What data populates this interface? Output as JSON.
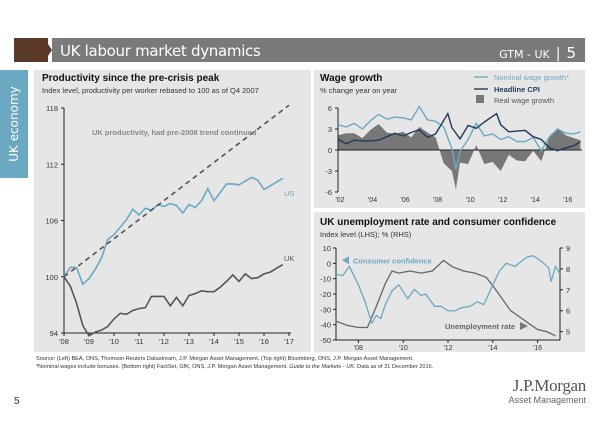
{
  "header": {
    "title": "UK labour market dynamics",
    "section": "GTM - UK",
    "separator": "|",
    "page": "5",
    "brand_color": "#5b3a2a",
    "bar_color": "#7a7a7a"
  },
  "side_tab": {
    "label": "UK economy",
    "color": "#6ba9c3"
  },
  "footer": {
    "source_line1": "Source: (Left) BEA, ONS, Thomson Reuters Datastream, J.P. Morgan Asset Management. (Top right) Bloomberg, ONS, J.P. Morgan Asset Management.",
    "source_line2a": "*Nominal wages include bonuses. (Bottom right) FactSet, GfK, ONS, J.P. Morgan Asset Management. ",
    "source_line2b": "Guide to the Markets - UK.",
    "source_line2c": " Data as of 31 December 2016.",
    "page_number": "5",
    "logo_line1": "J.P.Morgan",
    "logo_line2": "Asset Management"
  },
  "chart_data": [
    {
      "type": "line",
      "title": "Productivity since the pre-crisis peak",
      "subtitle": "Index level, productivity per worker rebased to 100 as of Q4 2007",
      "ylim": [
        94,
        118
      ],
      "yticks": [
        94,
        100,
        106,
        112,
        118
      ],
      "xlim": [
        2008,
        2017
      ],
      "xticks": [
        "'08",
        "'09",
        "'10",
        "'11",
        "'12",
        "'13",
        "'14",
        "'15",
        "'16",
        "'17"
      ],
      "annotations": [
        "UK productivity, had pre-2008 trend continued",
        "US",
        "UK"
      ],
      "series": [
        {
          "name": "US",
          "color": "#6ba9c3",
          "x": [
            2008,
            2008.25,
            2008.5,
            2008.75,
            2009,
            2009.25,
            2009.5,
            2009.75,
            2010,
            2010.25,
            2010.5,
            2010.75,
            2011,
            2011.25,
            2011.5,
            2011.75,
            2012,
            2012.25,
            2012.5,
            2012.75,
            2013,
            2013.25,
            2013.5,
            2013.75,
            2014,
            2014.25,
            2014.5,
            2014.75,
            2015,
            2015.25,
            2015.5,
            2015.75,
            2016,
            2016.25,
            2016.5,
            2016.75
          ],
          "y": [
            100,
            101,
            101,
            99.2,
            99.8,
            100.8,
            102,
            104,
            104.5,
            105.3,
            106.1,
            107.2,
            106.6,
            107.3,
            107.1,
            107.7,
            107.5,
            107.8,
            107.6,
            106.8,
            107.7,
            107.4,
            108.1,
            109.4,
            108.1,
            109.0,
            109.9,
            109.9,
            109.8,
            110.2,
            110.6,
            110.3,
            109.3,
            109.7,
            110.1,
            110.5
          ]
        },
        {
          "name": "UK",
          "color": "#555555",
          "x": [
            2008,
            2008.25,
            2008.5,
            2008.75,
            2009,
            2009.25,
            2009.5,
            2009.75,
            2010,
            2010.25,
            2010.5,
            2010.75,
            2011,
            2011.25,
            2011.5,
            2011.75,
            2012,
            2012.25,
            2012.5,
            2012.75,
            2013,
            2013.25,
            2013.5,
            2013.75,
            2014,
            2014.25,
            2014.5,
            2014.75,
            2015,
            2015.25,
            2015.5,
            2015.75,
            2016,
            2016.25,
            2016.5,
            2016.75
          ],
          "y": [
            100,
            99,
            97.2,
            94.8,
            93.7,
            94.1,
            94.3,
            94.7,
            95.5,
            96.1,
            96.0,
            96.4,
            96.6,
            96.7,
            97.9,
            97.9,
            97.9,
            96.9,
            97.8,
            96.9,
            98.0,
            98.2,
            98.5,
            98.4,
            98.4,
            98.9,
            99.5,
            100.2,
            99.5,
            100.3,
            99.8,
            99.9,
            100.3,
            100.5,
            100.9,
            101.3
          ]
        },
        {
          "name": "UK productivity, had pre-2008 trend continued",
          "color": "#555555",
          "style": "dashed",
          "x": [
            2008,
            2017
          ],
          "y": [
            100,
            118.3
          ]
        }
      ]
    },
    {
      "type": "line",
      "title": "Wage growth",
      "subtitle": "% change year on year",
      "ylim": [
        -6,
        6
      ],
      "yticks": [
        -6,
        -3,
        0,
        3,
        6
      ],
      "xlim": [
        2002,
        2017
      ],
      "xticks": [
        "'02",
        "'04",
        "'06",
        "'08",
        "'10",
        "'12",
        "'14",
        "'16"
      ],
      "legend": [
        "Nominal wage growth*",
        "Headline CPI",
        "Real wage growth"
      ],
      "legend_position": "top-right",
      "series": [
        {
          "name": "Nominal wage growth*",
          "color": "#6ba9c3",
          "x": [
            2002,
            2002.5,
            2003,
            2003.5,
            2004,
            2004.5,
            2005,
            2005.5,
            2006,
            2006.5,
            2007,
            2007.5,
            2008,
            2008.5,
            2009,
            2009.25,
            2009.5,
            2010,
            2010.5,
            2011,
            2011.5,
            2012,
            2012.5,
            2013,
            2013.5,
            2014,
            2014.5,
            2015,
            2015.5,
            2016,
            2016.5,
            2016.9
          ],
          "y": [
            3.6,
            3.3,
            3.8,
            3.0,
            4.2,
            5.1,
            4.4,
            4.7,
            4.6,
            4.3,
            6.2,
            4.3,
            4.1,
            3.3,
            0.2,
            -2.8,
            -0.2,
            1.5,
            3.8,
            2.0,
            2.3,
            1.5,
            1.9,
            1.2,
            1.2,
            1.8,
            -0.1,
            1.9,
            3.0,
            2.4,
            2.3,
            2.6
          ]
        },
        {
          "name": "Headline CPI",
          "color": "#1f3b5a",
          "x": [
            2002,
            2002.5,
            2003,
            2003.5,
            2004,
            2004.5,
            2005,
            2005.5,
            2006,
            2006.5,
            2007,
            2007.5,
            2008,
            2008.75,
            2009,
            2009.5,
            2010,
            2010.5,
            2011,
            2011.75,
            2012,
            2012.5,
            2013,
            2013.5,
            2014,
            2014.5,
            2015,
            2015.5,
            2016,
            2016.5,
            2016.9
          ],
          "y": [
            1.5,
            0.9,
            1.4,
            1.3,
            1.3,
            1.4,
            1.9,
            2.4,
            2.0,
            2.5,
            2.9,
            1.8,
            2.3,
            5.2,
            3.2,
            1.6,
            3.5,
            3.1,
            4.0,
            5.2,
            3.6,
            2.6,
            2.7,
            2.8,
            1.9,
            1.5,
            0.3,
            -0.1,
            0.3,
            0.6,
            1.2
          ]
        },
        {
          "name": "Real wage growth",
          "color": "#777777",
          "kind": "area",
          "x": [
            2002,
            2002.5,
            2003,
            2003.5,
            2004,
            2004.5,
            2005,
            2005.5,
            2006,
            2006.5,
            2007,
            2007.5,
            2008,
            2008.5,
            2009,
            2009.25,
            2009.5,
            2010,
            2010.5,
            2011,
            2011.5,
            2012,
            2012.5,
            2013,
            2013.5,
            2014,
            2014.5,
            2015,
            2015.5,
            2016,
            2016.5,
            2016.9
          ],
          "y": [
            2.1,
            2.4,
            2.4,
            1.7,
            2.9,
            3.7,
            2.5,
            2.3,
            2.6,
            1.8,
            3.3,
            2.5,
            1.8,
            -1.9,
            -3.0,
            -5.6,
            -1.8,
            -2.0,
            0.7,
            -2.0,
            -1.7,
            -3.0,
            -0.7,
            -1.5,
            -1.6,
            -0.1,
            -1.6,
            1.9,
            3.1,
            2.1,
            1.7,
            1.4
          ]
        }
      ]
    },
    {
      "type": "line",
      "title": "UK unemployment rate and consumer confidence",
      "subtitle": "Index level (LHS); % (RHS)",
      "ylim": [
        -50,
        10
      ],
      "yticks": [
        -50,
        -40,
        -30,
        -20,
        -10,
        0,
        10
      ],
      "y2lim": [
        4.6,
        9
      ],
      "y2ticks": [
        5,
        6,
        7,
        8,
        9
      ],
      "xlim": [
        2007,
        2017
      ],
      "xticks": [
        "'08",
        "'10",
        "'12",
        "'14",
        "'16"
      ],
      "annotations": [
        "Consumer confidence",
        "Unemployment rate"
      ],
      "series": [
        {
          "name": "Consumer confidence",
          "axis": "left",
          "color": "#6ba9c3",
          "x": [
            2007,
            2007.3,
            2007.6,
            2008,
            2008.3,
            2008.6,
            2008.8,
            2009,
            2009.2,
            2009.5,
            2009.8,
            2010.2,
            2010.5,
            2010.8,
            2011,
            2011.4,
            2011.7,
            2012,
            2012.3,
            2012.6,
            2013,
            2013.3,
            2013.6,
            2014,
            2014.3,
            2014.6,
            2015,
            2015.5,
            2015.8,
            2016.2,
            2016.5,
            2016.6,
            2016.8,
            2017
          ],
          "y": [
            -7,
            -8,
            -2,
            -14,
            -25,
            -39,
            -34,
            -36,
            -27,
            -18,
            -14,
            -23,
            -17,
            -21,
            -20,
            -28,
            -28,
            -31,
            -31,
            -29,
            -28,
            -25,
            -27,
            -14,
            -5,
            0,
            -2,
            4,
            5,
            1,
            -3,
            -12,
            -2,
            -7
          ]
        },
        {
          "name": "Unemployment rate",
          "axis": "right",
          "color": "#666666",
          "x": [
            2007,
            2007.5,
            2008,
            2008.4,
            2008.8,
            2009.2,
            2009.5,
            2009.8,
            2010.3,
            2010.8,
            2011.3,
            2011.8,
            2012.2,
            2012.7,
            2013.2,
            2013.7,
            2014,
            2014.4,
            2014.8,
            2015.2,
            2015.6,
            2016,
            2016.4,
            2016.8
          ],
          "y": [
            5.5,
            5.3,
            5.2,
            5.2,
            6.2,
            7.3,
            7.9,
            7.8,
            7.9,
            7.8,
            7.9,
            8.4,
            8.1,
            7.9,
            7.8,
            7.6,
            7.2,
            6.6,
            6.0,
            5.7,
            5.4,
            5.1,
            5.0,
            4.8
          ]
        }
      ]
    }
  ]
}
